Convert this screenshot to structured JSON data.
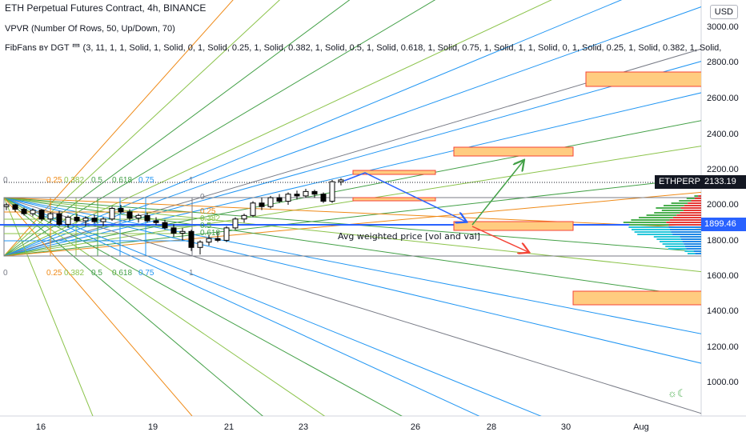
{
  "header": {
    "title": "ETH Perpetual Futures Contract, 4h, BINANCE",
    "indicator1": "VPVR (Number Of Rows, 50, Up/Down, 70)",
    "indicator2": "FibFans ʙʏ DGT ⺜ (3, 11, 1, 1, Solid, 1, Solid, 0, 1, Solid, 0.25, 1, Solid, 0.382, 1, Solid, 0.5, 1, Solid, 0.618, 1, Solid, 0.75, 1, Solid, 1, 1, Solid, 0, 1, Solid, 0.25, 1, Solid, 0.382, 1, Solid,"
  },
  "currency": "USD",
  "price_scale": {
    "ticks": [
      "3000.00",
      "2800.00",
      "2600.00",
      "2400.00",
      "2200.00",
      "2000.00",
      "1800.00",
      "1600.00",
      "1400.00",
      "1200.00",
      "1000.00"
    ],
    "last_price": "2133.19",
    "avg_price": "1899.46",
    "symbol": "ETHPERP"
  },
  "time_axis": {
    "ticks": [
      "16",
      "19",
      "21",
      "23",
      "26",
      "28",
      "30",
      "Aug"
    ]
  },
  "fib_labels_top": [
    "0",
    "0.25",
    "0.382",
    "0.5",
    "0.618",
    "0.75",
    "1"
  ],
  "fib_labels_bottom": [
    "0",
    "0.25",
    "0.382",
    "0.5",
    "0.618",
    "0.75",
    "1"
  ],
  "fib_labels_mid": [
    "0",
    "0.25",
    "0.382",
    "0.5",
    "0.618"
  ],
  "annotation": "Avg weighted price [vol and val]",
  "colors": {
    "up": "#ffffff",
    "down": "#000000",
    "orange": "#ef8a17",
    "green": "#43a047",
    "lightgreen": "#8bc34a",
    "blue": "#2196f3",
    "gray": "#787b86",
    "box_fill": "#ffcc80",
    "box_stroke": "#f44336",
    "last_price_bg": "#131722",
    "avg_bg": "#2962ff"
  },
  "candles": [
    [
      1990,
      2010,
      1970,
      2000
    ],
    [
      2000,
      2005,
      1960,
      1975
    ],
    [
      1975,
      1985,
      1940,
      1950
    ],
    [
      1950,
      1980,
      1935,
      1970
    ],
    [
      1970,
      1975,
      1910,
      1920
    ],
    [
      1920,
      1960,
      1900,
      1950
    ],
    [
      1950,
      1965,
      1880,
      1890
    ],
    [
      1890,
      1940,
      1870,
      1930
    ],
    [
      1930,
      1950,
      1900,
      1910
    ],
    [
      1910,
      1935,
      1880,
      1925
    ],
    [
      1925,
      1945,
      1895,
      1905
    ],
    [
      1905,
      1930,
      1880,
      1920
    ],
    [
      1920,
      1990,
      1910,
      1980
    ],
    [
      1980,
      2000,
      1950,
      1960
    ],
    [
      1960,
      1975,
      1910,
      1925
    ],
    [
      1925,
      1950,
      1900,
      1940
    ],
    [
      1940,
      1955,
      1900,
      1910
    ],
    [
      1910,
      1930,
      1885,
      1900
    ],
    [
      1900,
      1915,
      1860,
      1870
    ],
    [
      1870,
      1890,
      1820,
      1840
    ],
    [
      1840,
      1870,
      1800,
      1850
    ],
    [
      1850,
      1860,
      1740,
      1760
    ],
    [
      1760,
      1800,
      1720,
      1790
    ],
    [
      1790,
      1830,
      1770,
      1810
    ],
    [
      1810,
      1850,
      1790,
      1800
    ],
    [
      1800,
      1880,
      1790,
      1870
    ],
    [
      1870,
      1930,
      1860,
      1920
    ],
    [
      1920,
      1950,
      1900,
      1940
    ],
    [
      1940,
      2020,
      1930,
      2010
    ],
    [
      2010,
      2040,
      1970,
      1990
    ],
    [
      1990,
      2050,
      1980,
      2040
    ],
    [
      2040,
      2060,
      2010,
      2020
    ],
    [
      2020,
      2070,
      2000,
      2060
    ],
    [
      2060,
      2080,
      2030,
      2050
    ],
    [
      2050,
      2090,
      2040,
      2075
    ],
    [
      2075,
      2085,
      2040,
      2060
    ],
    [
      2060,
      2070,
      2010,
      2020
    ],
    [
      2020,
      2140,
      2010,
      2130
    ],
    [
      2130,
      2150,
      2110,
      2140
    ]
  ]
}
